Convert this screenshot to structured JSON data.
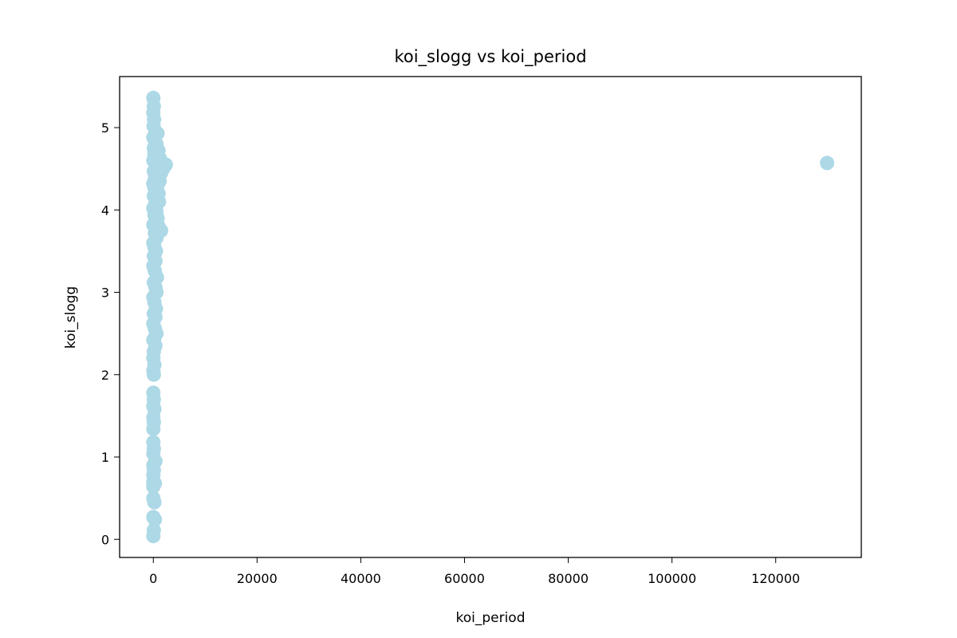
{
  "chart_data": {
    "type": "scatter",
    "title": "koi_slogg vs koi_period",
    "xlabel": "koi_period",
    "ylabel": "koi_slogg",
    "xlim": [
      -6500,
      136500
    ],
    "ylim": [
      -0.22,
      5.62
    ],
    "x_ticks": [
      0,
      20000,
      40000,
      60000,
      80000,
      100000,
      120000
    ],
    "x_tick_labels": [
      "0",
      "20000",
      "40000",
      "60000",
      "80000",
      "100000",
      "120000"
    ],
    "y_ticks": [
      0,
      1,
      2,
      3,
      4,
      5
    ],
    "y_tick_labels": [
      "0",
      "1",
      "2",
      "3",
      "4",
      "5"
    ],
    "grid": false,
    "marker_color": "#add8e6",
    "series": [
      {
        "points": [
          [
            0,
            5.36
          ],
          [
            100,
            5.26
          ],
          [
            0,
            5.18
          ],
          [
            150,
            5.1
          ],
          [
            50,
            5.02
          ],
          [
            400,
            4.95
          ],
          [
            800,
            4.93
          ],
          [
            0,
            4.88
          ],
          [
            300,
            4.84
          ],
          [
            600,
            4.8
          ],
          [
            100,
            4.75
          ],
          [
            1000,
            4.72
          ],
          [
            200,
            4.68
          ],
          [
            700,
            4.66
          ],
          [
            1300,
            4.62
          ],
          [
            0,
            4.6
          ],
          [
            400,
            4.57
          ],
          [
            2400,
            4.55
          ],
          [
            900,
            4.52
          ],
          [
            1900,
            4.5
          ],
          [
            100,
            4.47
          ],
          [
            1500,
            4.45
          ],
          [
            600,
            4.42
          ],
          [
            300,
            4.38
          ],
          [
            1200,
            4.35
          ],
          [
            0,
            4.32
          ],
          [
            800,
            4.3
          ],
          [
            200,
            4.27
          ],
          [
            500,
            4.24
          ],
          [
            1000,
            4.2
          ],
          [
            100,
            4.17
          ],
          [
            700,
            4.14
          ],
          [
            1100,
            4.1
          ],
          [
            300,
            4.06
          ],
          [
            0,
            4.02
          ],
          [
            600,
            3.98
          ],
          [
            200,
            3.94
          ],
          [
            800,
            3.9
          ],
          [
            400,
            3.86
          ],
          [
            0,
            3.82
          ],
          [
            1000,
            3.8
          ],
          [
            1500,
            3.75
          ],
          [
            300,
            3.72
          ],
          [
            600,
            3.66
          ],
          [
            0,
            3.6
          ],
          [
            200,
            3.55
          ],
          [
            500,
            3.5
          ],
          [
            100,
            3.44
          ],
          [
            400,
            3.38
          ],
          [
            0,
            3.32
          ],
          [
            300,
            3.26
          ],
          [
            700,
            3.18
          ],
          [
            100,
            3.12
          ],
          [
            400,
            3.06
          ],
          [
            600,
            3.0
          ],
          [
            0,
            2.94
          ],
          [
            200,
            2.88
          ],
          [
            500,
            2.8
          ],
          [
            100,
            2.74
          ],
          [
            400,
            2.7
          ],
          [
            0,
            2.62
          ],
          [
            300,
            2.56
          ],
          [
            600,
            2.5
          ],
          [
            200,
            2.44
          ],
          [
            0,
            2.42
          ],
          [
            400,
            2.35
          ],
          [
            100,
            2.28
          ],
          [
            0,
            2.2
          ],
          [
            200,
            2.12
          ],
          [
            0,
            2.05
          ],
          [
            100,
            2.0
          ],
          [
            0,
            1.78
          ],
          [
            100,
            1.7
          ],
          [
            0,
            1.62
          ],
          [
            200,
            1.58
          ],
          [
            0,
            1.48
          ],
          [
            100,
            1.42
          ],
          [
            0,
            1.34
          ],
          [
            0,
            1.18
          ],
          [
            100,
            1.1
          ],
          [
            0,
            1.04
          ],
          [
            400,
            0.95
          ],
          [
            0,
            0.9
          ],
          [
            100,
            0.84
          ],
          [
            0,
            0.78
          ],
          [
            0,
            0.7
          ],
          [
            300,
            0.68
          ],
          [
            0,
            0.64
          ],
          [
            0,
            0.5
          ],
          [
            200,
            0.45
          ],
          [
            0,
            0.27
          ],
          [
            300,
            0.24
          ],
          [
            100,
            0.11
          ],
          [
            0,
            0.04
          ],
          [
            129900,
            4.57
          ]
        ]
      }
    ]
  }
}
